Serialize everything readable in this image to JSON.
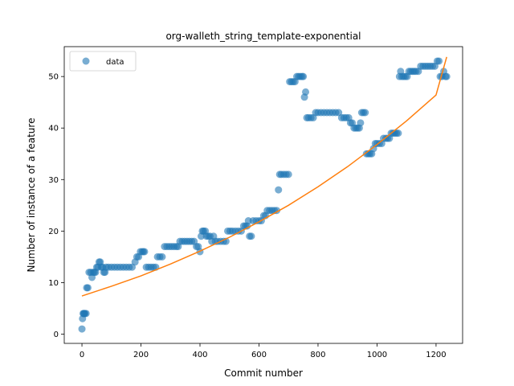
{
  "chart_data": {
    "type": "scatter",
    "title": "org-walleth_string_template-exponential",
    "xlabel": "Commit number",
    "ylabel": "Number of instance of a feature",
    "xlim": [
      -60,
      1290
    ],
    "ylim": [
      -1.8,
      55.8
    ],
    "xticks": [
      0,
      200,
      400,
      600,
      800,
      1000,
      1200
    ],
    "yticks": [
      0,
      10,
      20,
      30,
      40,
      50
    ],
    "grid": false,
    "legend": {
      "position": "top-left",
      "entries": [
        "data"
      ]
    },
    "colors": {
      "data": "#1f77b4",
      "fit": "#ff7f0e"
    },
    "series": [
      {
        "name": "data",
        "kind": "scatter",
        "points": [
          [
            0,
            1
          ],
          [
            2,
            3
          ],
          [
            4,
            4
          ],
          [
            6,
            4
          ],
          [
            8,
            4
          ],
          [
            10,
            4
          ],
          [
            14,
            4
          ],
          [
            16,
            9
          ],
          [
            20,
            9
          ],
          [
            24,
            12
          ],
          [
            30,
            12
          ],
          [
            34,
            11
          ],
          [
            38,
            12
          ],
          [
            42,
            12
          ],
          [
            46,
            12
          ],
          [
            50,
            13
          ],
          [
            54,
            13
          ],
          [
            58,
            14
          ],
          [
            62,
            14
          ],
          [
            66,
            13
          ],
          [
            70,
            13
          ],
          [
            74,
            12
          ],
          [
            78,
            12
          ],
          [
            82,
            13
          ],
          [
            90,
            13
          ],
          [
            100,
            13
          ],
          [
            110,
            13
          ],
          [
            120,
            13
          ],
          [
            130,
            13
          ],
          [
            140,
            13
          ],
          [
            150,
            13
          ],
          [
            160,
            13
          ],
          [
            170,
            13
          ],
          [
            180,
            14
          ],
          [
            186,
            15
          ],
          [
            192,
            15
          ],
          [
            198,
            16
          ],
          [
            204,
            16
          ],
          [
            208,
            16
          ],
          [
            212,
            16
          ],
          [
            218,
            13
          ],
          [
            226,
            13
          ],
          [
            234,
            13
          ],
          [
            242,
            13
          ],
          [
            250,
            13
          ],
          [
            256,
            15
          ],
          [
            264,
            15
          ],
          [
            272,
            15
          ],
          [
            280,
            17
          ],
          [
            288,
            17
          ],
          [
            296,
            17
          ],
          [
            304,
            17
          ],
          [
            312,
            17
          ],
          [
            320,
            17
          ],
          [
            326,
            17
          ],
          [
            332,
            18
          ],
          [
            340,
            18
          ],
          [
            348,
            18
          ],
          [
            356,
            18
          ],
          [
            364,
            18
          ],
          [
            372,
            18
          ],
          [
            380,
            18
          ],
          [
            388,
            17
          ],
          [
            394,
            17
          ],
          [
            400,
            16
          ],
          [
            404,
            19
          ],
          [
            408,
            20
          ],
          [
            412,
            20
          ],
          [
            418,
            20
          ],
          [
            422,
            19
          ],
          [
            428,
            19
          ],
          [
            434,
            19
          ],
          [
            440,
            18
          ],
          [
            446,
            19
          ],
          [
            452,
            18
          ],
          [
            460,
            18
          ],
          [
            470,
            18
          ],
          [
            480,
            18
          ],
          [
            488,
            18
          ],
          [
            494,
            20
          ],
          [
            502,
            20
          ],
          [
            510,
            20
          ],
          [
            520,
            20
          ],
          [
            530,
            20
          ],
          [
            540,
            20
          ],
          [
            548,
            21
          ],
          [
            554,
            21
          ],
          [
            560,
            21
          ],
          [
            564,
            22
          ],
          [
            568,
            19
          ],
          [
            574,
            19
          ],
          [
            580,
            22
          ],
          [
            590,
            22
          ],
          [
            600,
            22
          ],
          [
            608,
            22
          ],
          [
            616,
            23
          ],
          [
            622,
            23
          ],
          [
            628,
            24
          ],
          [
            636,
            24
          ],
          [
            644,
            24
          ],
          [
            652,
            24
          ],
          [
            660,
            24
          ],
          [
            666,
            28
          ],
          [
            670,
            31
          ],
          [
            676,
            31
          ],
          [
            684,
            31
          ],
          [
            692,
            31
          ],
          [
            700,
            31
          ],
          [
            704,
            49
          ],
          [
            710,
            49
          ],
          [
            716,
            49
          ],
          [
            722,
            49
          ],
          [
            728,
            50
          ],
          [
            734,
            50
          ],
          [
            740,
            50
          ],
          [
            746,
            50
          ],
          [
            750,
            50
          ],
          [
            754,
            46
          ],
          [
            758,
            47
          ],
          [
            762,
            42
          ],
          [
            768,
            42
          ],
          [
            776,
            42
          ],
          [
            784,
            42
          ],
          [
            792,
            43
          ],
          [
            800,
            43
          ],
          [
            810,
            43
          ],
          [
            820,
            43
          ],
          [
            830,
            43
          ],
          [
            840,
            43
          ],
          [
            850,
            43
          ],
          [
            860,
            43
          ],
          [
            870,
            43
          ],
          [
            880,
            42
          ],
          [
            888,
            42
          ],
          [
            896,
            42
          ],
          [
            904,
            42
          ],
          [
            910,
            41
          ],
          [
            916,
            41
          ],
          [
            922,
            40
          ],
          [
            928,
            40
          ],
          [
            934,
            40
          ],
          [
            940,
            40
          ],
          [
            944,
            41
          ],
          [
            948,
            43
          ],
          [
            954,
            43
          ],
          [
            960,
            43
          ],
          [
            964,
            35
          ],
          [
            970,
            35
          ],
          [
            976,
            35
          ],
          [
            982,
            35
          ],
          [
            988,
            36
          ],
          [
            994,
            37
          ],
          [
            1000,
            37
          ],
          [
            1008,
            37
          ],
          [
            1016,
            37
          ],
          [
            1022,
            38
          ],
          [
            1030,
            38
          ],
          [
            1036,
            38
          ],
          [
            1042,
            38
          ],
          [
            1048,
            39
          ],
          [
            1054,
            39
          ],
          [
            1060,
            39
          ],
          [
            1066,
            39
          ],
          [
            1072,
            39
          ],
          [
            1076,
            50
          ],
          [
            1080,
            51
          ],
          [
            1084,
            50
          ],
          [
            1090,
            50
          ],
          [
            1096,
            50
          ],
          [
            1102,
            50
          ],
          [
            1108,
            51
          ],
          [
            1114,
            51
          ],
          [
            1120,
            51
          ],
          [
            1126,
            51
          ],
          [
            1132,
            51
          ],
          [
            1140,
            51
          ],
          [
            1148,
            52
          ],
          [
            1156,
            52
          ],
          [
            1164,
            52
          ],
          [
            1172,
            52
          ],
          [
            1180,
            52
          ],
          [
            1188,
            52
          ],
          [
            1196,
            52
          ],
          [
            1204,
            53
          ],
          [
            1210,
            53
          ],
          [
            1214,
            50
          ],
          [
            1220,
            50
          ],
          [
            1226,
            51
          ],
          [
            1232,
            50
          ],
          [
            1236,
            50
          ]
        ]
      },
      {
        "name": "fit",
        "kind": "line",
        "x": [
          0,
          100,
          200,
          300,
          400,
          500,
          600,
          700,
          800,
          900,
          1000,
          1100,
          1200,
          1236
        ],
        "y": [
          7.4,
          9.3,
          11.3,
          13.6,
          16.1,
          18.8,
          21.8,
          25.0,
          28.6,
          32.5,
          36.8,
          41.4,
          46.4,
          53.8
        ]
      }
    ]
  }
}
